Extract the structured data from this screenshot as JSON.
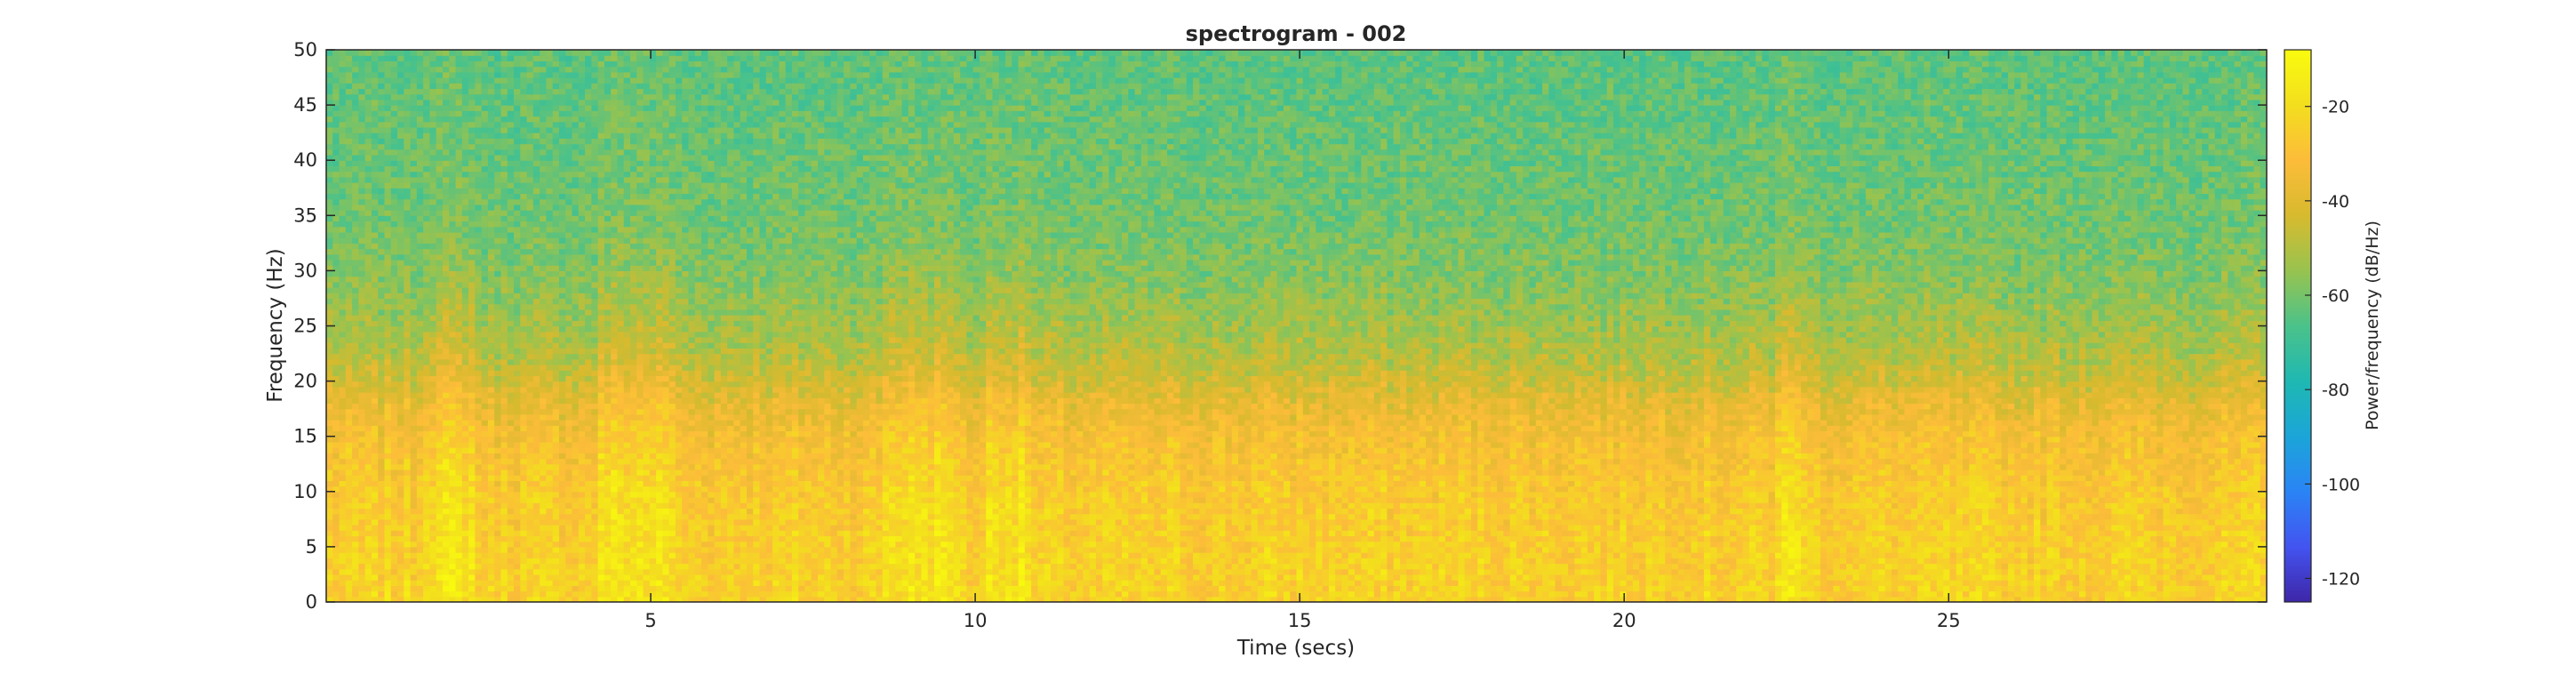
{
  "chart_data": {
    "type": "heatmap",
    "title": "spectrogram - 002",
    "xlabel": "Time (secs)",
    "ylabel": "Frequency (Hz)",
    "colorbar_label": "Power/frequency (dB/Hz)",
    "xlim": [
      0,
      29.9
    ],
    "ylim": [
      0,
      50
    ],
    "clim": [
      -125,
      -8
    ],
    "x_ticks": [
      5,
      10,
      15,
      20,
      25
    ],
    "y_ticks": [
      0,
      5,
      10,
      15,
      20,
      25,
      30,
      35,
      40,
      45,
      50
    ],
    "colorbar_ticks": [
      -20,
      -40,
      -60,
      -80,
      -100,
      -120
    ],
    "colormap": "parula",
    "colormap_stops": [
      "#3e26a8",
      "#4354f0",
      "#2a84f5",
      "#1ba5d8",
      "#1fb8b2",
      "#4bc28a",
      "#98c34f",
      "#d7ba2e",
      "#fcbc3a",
      "#f3de1e",
      "#f9fb0e"
    ],
    "power_profile": {
      "frequency_hz": [
        0,
        5,
        10,
        15,
        18,
        20,
        22,
        25,
        30,
        35,
        40,
        45,
        50
      ],
      "mean_db": [
        -24,
        -25,
        -27,
        -32,
        -38,
        -44,
        -49,
        -53,
        -58,
        -61,
        -62,
        -63,
        -64
      ]
    },
    "high_power_time_windows_secs": [
      [
        1.5,
        2.3
      ],
      [
        4.2,
        5.4
      ],
      [
        8.6,
        9.8
      ],
      [
        10.2,
        10.9
      ],
      [
        22.3,
        22.8
      ]
    ]
  }
}
